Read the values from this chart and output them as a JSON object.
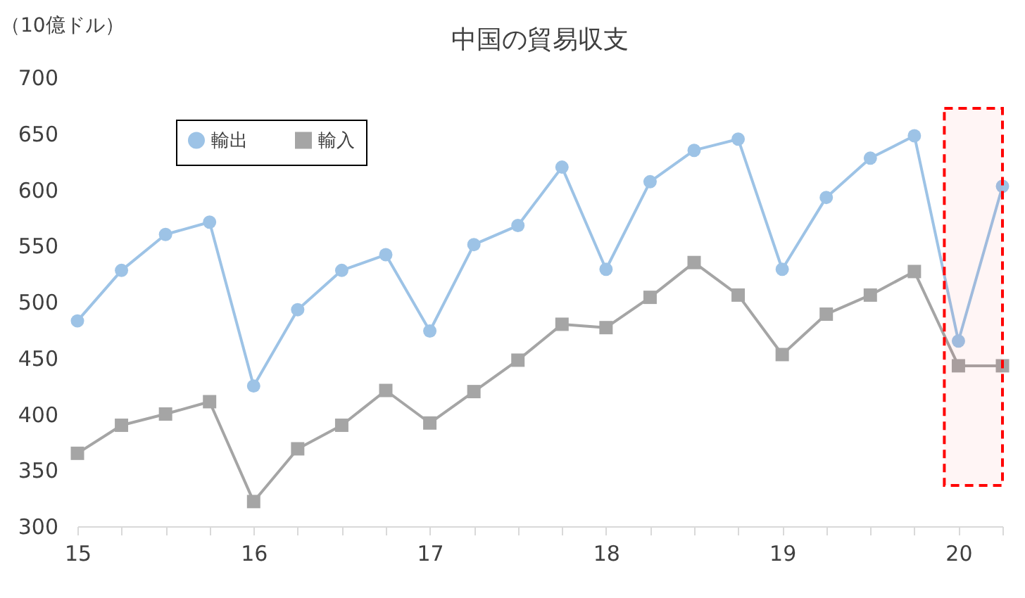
{
  "chart_data": {
    "type": "line",
    "title": "中国の貿易収支",
    "ylabel": "（10億ドル）",
    "x": [
      15,
      15.25,
      15.5,
      15.75,
      16,
      16.25,
      16.5,
      16.75,
      17,
      17.25,
      17.5,
      17.75,
      18,
      18.25,
      18.5,
      18.75,
      19,
      19.25,
      19.5,
      19.75,
      20,
      20.25
    ],
    "series": [
      {
        "name": "輸出",
        "color": "#9dc3e6",
        "marker": "circle",
        "values": [
          483,
          528,
          560,
          571,
          425,
          493,
          528,
          542,
          474,
          551,
          568,
          620,
          529,
          607,
          635,
          645,
          529,
          593,
          628,
          648,
          465,
          603
        ]
      },
      {
        "name": "輸入",
        "color": "#a5a5a5",
        "marker": "square",
        "values": [
          365,
          390,
          400,
          411,
          322,
          369,
          390,
          421,
          392,
          420,
          448,
          480,
          477,
          504,
          535,
          506,
          453,
          489,
          506,
          527,
          443,
          443
        ]
      }
    ],
    "xlim": [
      15,
      20.25
    ],
    "xticks": [
      15,
      {
        "value": 15.25,
        "label": null
      },
      {
        "value": 15.5,
        "label": null
      },
      {
        "value": 15.75,
        "label": null
      },
      16,
      {
        "value": 16.25,
        "label": null
      },
      {
        "value": 16.5,
        "label": null
      },
      {
        "value": 16.75,
        "label": null
      },
      17,
      {
        "value": 17.25,
        "label": null
      },
      {
        "value": 17.5,
        "label": null
      },
      {
        "value": 17.75,
        "label": null
      },
      18,
      {
        "value": 18.25,
        "label": null
      },
      {
        "value": 18.5,
        "label": null
      },
      {
        "value": 18.75,
        "label": null
      },
      19,
      {
        "value": 19.25,
        "label": null
      },
      {
        "value": 19.5,
        "label": null
      },
      {
        "value": 19.75,
        "label": null
      },
      20,
      {
        "value": 20.25,
        "label": null
      }
    ],
    "ylim": [
      300,
      700
    ],
    "yticks": [
      300,
      350,
      400,
      450,
      500,
      550,
      600,
      650,
      700
    ],
    "bands": [
      {
        "axis": "x",
        "from": 19.92,
        "to": 20.25,
        "color": "#ff0000"
      }
    ],
    "grid": false,
    "legend": "top left",
    "line_style": "solid"
  }
}
